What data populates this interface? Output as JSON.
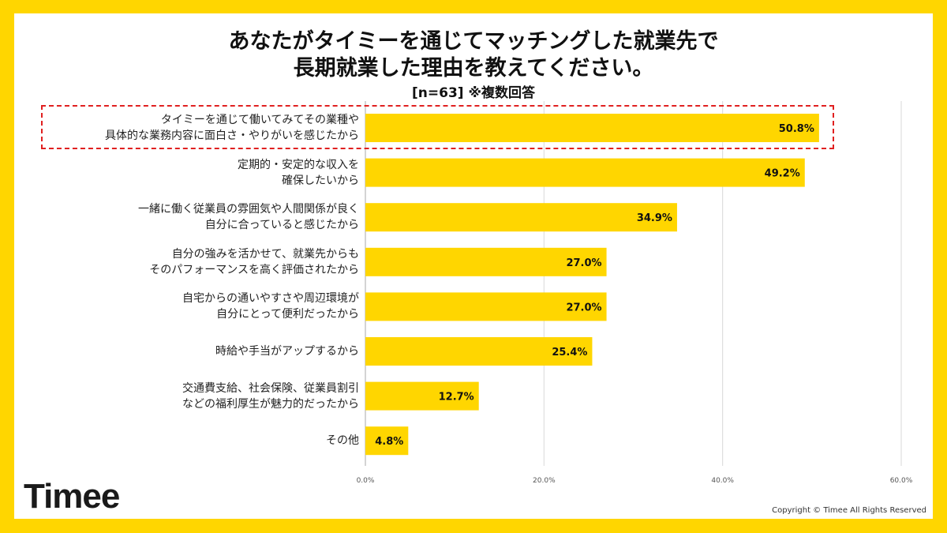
{
  "chart_data": {
    "type": "bar",
    "orientation": "horizontal",
    "title": "あなたがタイミーを通じてマッチングした就業先で\n長期就業した理由を教えてください。",
    "title_lines": [
      "あなたがタイミーを通じてマッチングした就業先で",
      "長期就業した理由を教えてください。"
    ],
    "subtitle": "[n=63]  ※複数回答",
    "categories": [
      [
        "タイミーを通じて働いてみてその業種や",
        "具体的な業務内容に面白さ・やりがいを感じたから"
      ],
      [
        "定期的・安定的な収入を",
        "確保したいから"
      ],
      [
        "一緒に働く従業員の雰囲気や人間関係が良く",
        "自分に合っていると感じたから"
      ],
      [
        "自分の強みを活かせて、就業先からも",
        "そのパフォーマンスを高く評価されたから"
      ],
      [
        "自宅からの通いやすさや周辺環境が",
        "自分にとって便利だったから"
      ],
      [
        "時給や手当がアップするから"
      ],
      [
        "交通費支給、社会保険、従業員割引",
        "などの福利厚生が魅力的だったから"
      ],
      [
        "その他"
      ]
    ],
    "values": [
      50.8,
      49.2,
      34.9,
      27.0,
      27.0,
      25.4,
      12.7,
      4.8
    ],
    "data_labels": [
      "50.8%",
      "49.2%",
      "34.9%",
      "27.0%",
      "27.0%",
      "25.4%",
      "12.7%",
      "4.8%"
    ],
    "xlim": [
      0,
      60
    ],
    "x_ticks": [
      "0.0%",
      "20.0%",
      "40.0%",
      "60.0%"
    ],
    "x_tick_values": [
      0,
      20,
      40,
      60
    ],
    "grid": true,
    "highlighted_category_index": 0,
    "bar_color": "#FFD600",
    "highlight_color": "#E02020"
  },
  "brand": {
    "logo": "Timee",
    "frame_color": "#FFD600"
  },
  "footer": {
    "copyright": "Copyright © Timee All Rights Reserved"
  }
}
